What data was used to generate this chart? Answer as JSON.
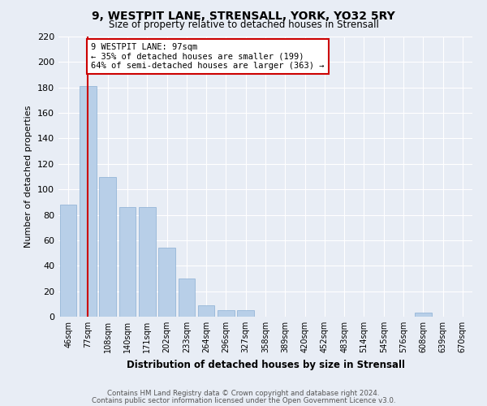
{
  "title": "9, WESTPIT LANE, STRENSALL, YORK, YO32 5RY",
  "subtitle": "Size of property relative to detached houses in Strensall",
  "xlabel": "Distribution of detached houses by size in Strensall",
  "ylabel": "Number of detached properties",
  "footnote1": "Contains HM Land Registry data © Crown copyright and database right 2024.",
  "footnote2": "Contains public sector information licensed under the Open Government Licence v3.0.",
  "bar_labels": [
    "46sqm",
    "77sqm",
    "108sqm",
    "140sqm",
    "171sqm",
    "202sqm",
    "233sqm",
    "264sqm",
    "296sqm",
    "327sqm",
    "358sqm",
    "389sqm",
    "420sqm",
    "452sqm",
    "483sqm",
    "514sqm",
    "545sqm",
    "576sqm",
    "608sqm",
    "639sqm",
    "670sqm"
  ],
  "bar_values": [
    88,
    181,
    110,
    86,
    86,
    54,
    30,
    9,
    5,
    5,
    0,
    0,
    0,
    0,
    0,
    0,
    0,
    0,
    3,
    0,
    0
  ],
  "bar_color": "#b8cfe8",
  "bar_edge_color": "#8aafd4",
  "background_color": "#e8edf5",
  "grid_color": "#ffffff",
  "annotation_line1": "9 WESTPIT LANE: 97sqm",
  "annotation_line2": "← 35% of detached houses are smaller (199)",
  "annotation_line3": "64% of semi-detached houses are larger (363) →",
  "annotation_box_color": "#ffffff",
  "annotation_box_edge": "#cc0000",
  "vline_x": 1,
  "vline_color": "#cc0000",
  "ylim": [
    0,
    220
  ],
  "yticks": [
    0,
    20,
    40,
    60,
    80,
    100,
    120,
    140,
    160,
    180,
    200,
    220
  ]
}
